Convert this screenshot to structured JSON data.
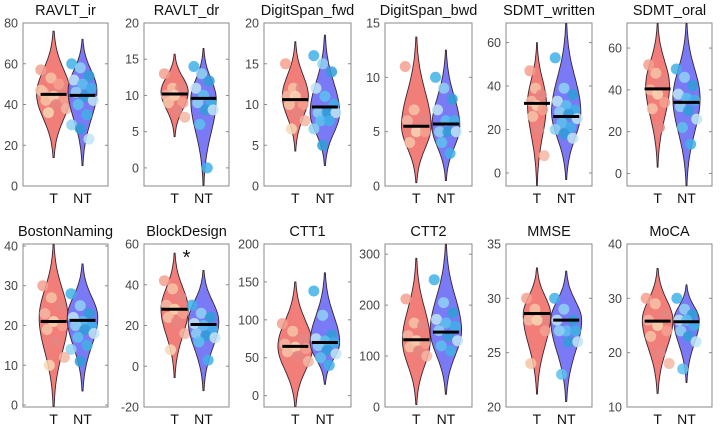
{
  "chart_data": {
    "type": "violin",
    "layout": {
      "rows": 2,
      "cols": 6
    },
    "groups": [
      "T",
      "NT"
    ],
    "group_colors": {
      "T": "#f0706a",
      "NT": "#6b6cf5"
    },
    "point_palettes": {
      "T": [
        "#f4a08f",
        "#f6c3a6",
        "#e58580",
        "#f3b6a3",
        "#f8d7b4"
      ],
      "NT": [
        "#3fb0e6",
        "#8fd2f2",
        "#2f9fd8",
        "#bfe5f6",
        "#5cc2ee"
      ]
    },
    "median_line_color": "#000000",
    "panels": [
      {
        "title": "RAVLT_ir",
        "ylim": [
          0,
          80
        ],
        "yticks": [
          0,
          20,
          40,
          60,
          80
        ],
        "significant": false,
        "T": {
          "median": 45,
          "range": [
            14,
            76
          ],
          "peak": 45,
          "width": 1.0,
          "points": [
            57,
            53,
            48,
            46,
            44,
            43,
            42,
            40,
            38,
            36,
            50,
            47
          ]
        },
        "NT": {
          "median": 44.5,
          "range": [
            10,
            72
          ],
          "peak": 47,
          "width": 0.85,
          "points": [
            60,
            58,
            54,
            52,
            50,
            48,
            46,
            44,
            42,
            40,
            35,
            30,
            28,
            23
          ]
        }
      },
      {
        "title": "RAVLT_dr",
        "ylim": [
          -2.5,
          20
        ],
        "yticks": [
          0,
          5,
          10,
          15,
          20
        ],
        "significant": false,
        "T": {
          "median": 10.2,
          "range": [
            4.3,
            15.7
          ],
          "peak": 10.5,
          "width": 0.8,
          "points": [
            13,
            11,
            11,
            10,
            10,
            9,
            9,
            8,
            7
          ]
        },
        "NT": {
          "median": 9.6,
          "range": [
            -2.5,
            16.5
          ],
          "peak": 9.5,
          "width": 0.75,
          "points": [
            14,
            13,
            12,
            11,
            10,
            9,
            9,
            8,
            8,
            6,
            0
          ]
        }
      },
      {
        "title": "DigitSpan_fwd",
        "ylim": [
          0,
          20
        ],
        "yticks": [
          0,
          5,
          10,
          15,
          20
        ],
        "significant": false,
        "T": {
          "median": 10.6,
          "range": [
            4.3,
            17.7
          ],
          "peak": 11,
          "width": 0.75,
          "points": [
            15,
            12,
            12,
            11,
            11,
            10,
            10,
            9,
            8,
            7
          ]
        },
        "NT": {
          "median": 9.7,
          "range": [
            2.5,
            18.5
          ],
          "peak": 9,
          "width": 0.85,
          "points": [
            16,
            15,
            14,
            12,
            11,
            10,
            9,
            9,
            9,
            8,
            8,
            7,
            5
          ]
        }
      },
      {
        "title": "DigitSpan_bwd",
        "ylim": [
          0,
          15
        ],
        "yticks": [
          0,
          5,
          10,
          15
        ],
        "significant": false,
        "T": {
          "median": 5.5,
          "range": [
            0.3,
            13.7
          ],
          "peak": 5.5,
          "width": 0.85,
          "points": [
            11,
            7,
            6,
            6,
            5,
            5,
            4
          ]
        },
        "NT": {
          "median": 5.7,
          "range": [
            0.5,
            12.5
          ],
          "peak": 5.5,
          "width": 0.8,
          "points": [
            10,
            9,
            8,
            7,
            6,
            6,
            5,
            5,
            5,
            4,
            3
          ]
        }
      },
      {
        "title": "SDMT_written",
        "ylim": [
          -6,
          69
        ],
        "yticks": [
          0,
          20,
          40,
          60
        ],
        "significant": false,
        "T": {
          "median": 32,
          "range": [
            -6,
            60
          ],
          "peak": 32,
          "width": 0.55,
          "points": [
            47,
            39,
            36,
            33,
            31,
            29,
            26,
            20,
            8
          ]
        },
        "NT": {
          "median": 26,
          "range": [
            -3,
            69
          ],
          "peak": 28,
          "width": 0.85,
          "points": [
            53,
            39,
            36,
            33,
            31,
            29,
            28,
            27,
            25,
            23,
            21,
            20,
            18,
            16
          ]
        }
      },
      {
        "title": "SDMT_oral",
        "ylim": [
          -6,
          72
        ],
        "yticks": [
          0,
          20,
          40,
          60
        ],
        "significant": false,
        "T": {
          "median": 40.5,
          "range": [
            3,
            72
          ],
          "peak": 42,
          "width": 0.7,
          "points": [
            52,
            48,
            44,
            40,
            38,
            34,
            31,
            22
          ]
        },
        "NT": {
          "median": 34,
          "range": [
            -6,
            72
          ],
          "peak": 36,
          "width": 0.8,
          "points": [
            50,
            46,
            42,
            38,
            36,
            35,
            32,
            30,
            26,
            22,
            14
          ]
        }
      },
      {
        "title": "BostonNaming",
        "ylim": [
          -0.5,
          40.5
        ],
        "yticks": [
          0,
          10,
          20,
          30,
          40
        ],
        "significant": false,
        "T": {
          "median": 21,
          "range": [
            -0.5,
            40.5
          ],
          "peak": 22,
          "width": 0.85,
          "points": [
            30,
            27,
            25,
            23,
            21,
            20,
            19,
            16,
            12,
            10
          ]
        },
        "NT": {
          "median": 21.3,
          "range": [
            3.5,
            35.5
          ],
          "peak": 22,
          "width": 0.9,
          "points": [
            28,
            25,
            23,
            22,
            21,
            20,
            20,
            19,
            18,
            17,
            15,
            14,
            11
          ]
        }
      },
      {
        "title": "BlockDesign",
        "ylim": [
          -20,
          60
        ],
        "yticks": [
          -20,
          0,
          20,
          40,
          60
        ],
        "significant": true,
        "significance_label": "*",
        "T": {
          "median": 28,
          "range": [
            -5.5,
            55.5
          ],
          "peak": 28,
          "width": 0.8,
          "points": [
            42,
            38,
            34,
            30,
            28,
            26,
            24,
            22,
            16,
            8
          ]
        },
        "NT": {
          "median": 20.5,
          "range": [
            -12,
            47
          ],
          "peak": 22,
          "width": 0.9,
          "points": [
            30,
            26,
            24,
            21,
            20,
            18,
            16,
            15,
            14,
            12,
            3
          ]
        }
      },
      {
        "title": "CTT1",
        "ylim": [
          -15,
          200
        ],
        "yticks": [
          0,
          50,
          100,
          150,
          200
        ],
        "significant": false,
        "T": {
          "median": 65,
          "range": [
            -15,
            150
          ],
          "peak": 65,
          "width": 1.0,
          "points": [
            95,
            85,
            75,
            68,
            64,
            62,
            58,
            52,
            45
          ]
        },
        "NT": {
          "median": 70,
          "range": [
            15,
            162
          ],
          "peak": 70,
          "width": 0.85,
          "points": [
            138,
            106,
            80,
            75,
            72,
            70,
            66,
            60,
            55,
            50,
            40
          ]
        }
      },
      {
        "title": "CTT2",
        "ylim": [
          0,
          320
        ],
        "yticks": [
          0,
          100,
          200,
          300
        ],
        "significant": false,
        "T": {
          "median": 132,
          "range": [
            5,
            292
          ],
          "peak": 130,
          "width": 0.8,
          "points": [
            212,
            165,
            160,
            140,
            130,
            125,
            118,
            110,
            100
          ]
        },
        "NT": {
          "median": 147,
          "range": [
            25,
            320
          ],
          "peak": 150,
          "width": 0.9,
          "points": [
            250,
            205,
            185,
            172,
            165,
            158,
            150,
            140,
            130,
            120,
            110
          ]
        }
      },
      {
        "title": "MMSE",
        "ylim": [
          20,
          35
        ],
        "yticks": [
          20,
          25,
          30,
          35
        ],
        "significant": false,
        "T": {
          "median": 28.6,
          "range": [
            21.2,
            32.8
          ],
          "peak": 28.5,
          "width": 0.8,
          "points": [
            30,
            29,
            28,
            28,
            28,
            27,
            24
          ]
        },
        "NT": {
          "median": 28,
          "range": [
            20.5,
            32.5
          ],
          "peak": 28,
          "width": 0.9,
          "points": [
            30,
            29,
            28,
            28,
            27,
            27,
            27,
            26,
            26,
            23
          ]
        }
      },
      {
        "title": "MoCA",
        "ylim": [
          10,
          40
        ],
        "yticks": [
          10,
          20,
          30,
          40
        ],
        "significant": false,
        "T": {
          "median": 25.8,
          "range": [
            12.5,
            35.5
          ],
          "peak": 26,
          "width": 0.9,
          "points": [
            30,
            29,
            27,
            26,
            25,
            24,
            23,
            20,
            18
          ]
        },
        "NT": {
          "median": 25.7,
          "range": [
            14.5,
            32.5
          ],
          "peak": 26,
          "width": 0.75,
          "points": [
            30,
            28,
            27,
            26,
            26,
            25,
            24,
            23,
            22,
            17
          ]
        }
      }
    ]
  }
}
